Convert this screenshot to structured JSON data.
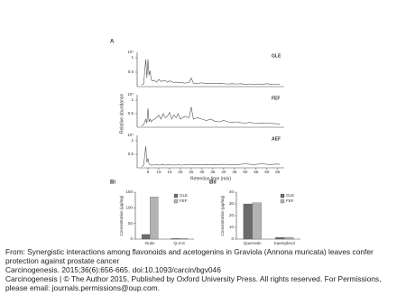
{
  "chart_data": [
    {
      "type": "line",
      "panel_label": "A",
      "name": "GLE",
      "y_unit": "10⁷",
      "color": "#555",
      "x": [
        2,
        3,
        4,
        4.5,
        5,
        5.5,
        6,
        6.5,
        7,
        8,
        9,
        10,
        11,
        12,
        13,
        14,
        15,
        16,
        17,
        18,
        19,
        20,
        22,
        24,
        25,
        26,
        28,
        30,
        32,
        34,
        36,
        38,
        40,
        42,
        44,
        46,
        48,
        50,
        52,
        54,
        56,
        58,
        60,
        62,
        64,
        66
      ],
      "values": [
        0.05,
        0.1,
        0.95,
        0.3,
        0.95,
        0.4,
        0.55,
        0.25,
        0.2,
        0.22,
        0.15,
        0.25,
        0.18,
        0.2,
        0.22,
        0.15,
        0.2,
        0.17,
        0.14,
        0.16,
        0.13,
        0.15,
        0.12,
        0.14,
        0.3,
        0.12,
        0.11,
        0.13,
        0.1,
        0.12,
        0.1,
        0.11,
        0.1,
        0.09,
        0.1,
        0.09,
        0.1,
        0.08,
        0.09,
        0.08,
        0.09,
        0.08,
        0.1,
        0.08,
        0.09,
        0.08
      ],
      "xlim": [
        0,
        68
      ],
      "ylim": [
        0,
        1
      ],
      "yticks": [
        0.5,
        1
      ]
    },
    {
      "type": "line",
      "name": "FEF",
      "y_unit": "10⁷",
      "ylabel": "Relative abundance",
      "color": "#555",
      "x": [
        2,
        3,
        4,
        4.5,
        5,
        5.5,
        6,
        6.5,
        7,
        8,
        9,
        10,
        11,
        12,
        13,
        14,
        15,
        16,
        17,
        18,
        19,
        20,
        22,
        24,
        25,
        26,
        28,
        30,
        32,
        34,
        36,
        38,
        40,
        42,
        44,
        46,
        48,
        50,
        52,
        54,
        56,
        58,
        60,
        62,
        64,
        66
      ],
      "values": [
        0.05,
        0.1,
        0.3,
        0.15,
        0.7,
        0.2,
        0.3,
        0.2,
        0.25,
        0.3,
        0.35,
        0.45,
        0.3,
        0.5,
        0.35,
        0.4,
        0.55,
        0.3,
        0.45,
        0.35,
        0.5,
        0.3,
        0.4,
        0.35,
        0.75,
        0.3,
        0.35,
        0.3,
        0.25,
        0.3,
        0.22,
        0.2,
        0.25,
        0.2,
        0.18,
        0.2,
        0.17,
        0.15,
        0.18,
        0.15,
        0.14,
        0.16,
        0.15,
        0.14,
        0.13,
        0.12
      ],
      "xlim": [
        0,
        68
      ],
      "ylim": [
        0,
        1
      ],
      "yticks": [
        0.5,
        1
      ]
    },
    {
      "type": "line",
      "name": "AEF",
      "y_unit": "10⁷",
      "xlabel": "Retention time (min)",
      "color": "#555",
      "x": [
        2,
        3,
        4,
        4.5,
        5,
        5.5,
        6,
        6.5,
        7,
        8,
        9,
        10,
        11,
        12,
        13,
        14,
        15,
        16,
        17,
        18,
        19,
        20,
        22,
        24,
        25,
        26,
        28,
        30,
        32,
        34,
        36,
        38,
        40,
        42,
        44,
        46,
        48,
        50,
        52,
        54,
        56,
        58,
        60,
        62,
        64,
        66
      ],
      "values": [
        0.05,
        0.1,
        0.8,
        0.2,
        0.35,
        0.15,
        0.12,
        0.1,
        0.11,
        0.1,
        0.12,
        0.1,
        0.11,
        0.12,
        0.1,
        0.11,
        0.12,
        0.1,
        0.11,
        0.1,
        0.12,
        0.1,
        0.11,
        0.12,
        0.13,
        0.11,
        0.12,
        0.11,
        0.12,
        0.11,
        0.12,
        0.11,
        0.13,
        0.12,
        0.11,
        0.12,
        0.13,
        0.15,
        0.13,
        0.12,
        0.14,
        0.15,
        0.13,
        0.12,
        0.14,
        0.13
      ],
      "xlim": [
        0,
        68
      ],
      "ylim": [
        0,
        1
      ],
      "yticks": [
        0.5,
        1
      ],
      "xticks": [
        5,
        10,
        15,
        20,
        25,
        30,
        35,
        40,
        45,
        50,
        55,
        60,
        65
      ]
    },
    {
      "type": "bar",
      "panel_label": "Bi",
      "ylabel": "Concentration (μg/mg)",
      "categories": [
        "Rutin",
        "Q-3-G"
      ],
      "series": [
        {
          "name": "GLE",
          "color": "#6b6b6b",
          "values": [
            15,
            2
          ]
        },
        {
          "name": "FEF",
          "color": "#b3b3b3",
          "values": [
            135,
            2
          ]
        }
      ],
      "ylim": [
        0,
        150
      ],
      "yticks": [
        0,
        50,
        100,
        150
      ]
    },
    {
      "type": "bar",
      "panel_label": "Bii",
      "ylabel": "Concentration (μg/mg)",
      "categories": [
        "Quercetin",
        "Kaempferol"
      ],
      "series": [
        {
          "name": "GLE",
          "color": "#6b6b6b",
          "values": [
            30,
            1.5
          ]
        },
        {
          "name": "FEF",
          "color": "#b3b3b3",
          "values": [
            31,
            1.5
          ]
        }
      ],
      "ylim": [
        0,
        40
      ],
      "yticks": [
        0,
        10,
        20,
        30,
        40
      ]
    }
  ],
  "caption": {
    "source": "From: Synergistic interactions among flavonoids and acetogenins in Graviola (Annona muricata) leaves confer protection against prostate cancer",
    "citation": "Carcinogenesis. 2015;36(6):656-665. doi:10.1093/carcin/bgv046",
    "copyright": "Carcinogenesis | © The Author 2015. Published by Oxford University Press. All rights reserved. For Permissions, please email: journals.permissions@oup.com."
  }
}
